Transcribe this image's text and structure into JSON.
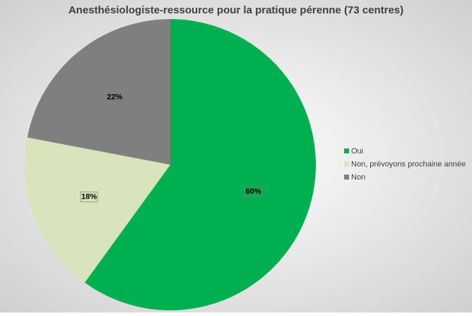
{
  "chart_data": {
    "type": "pie",
    "title": "Anesthésiologiste-ressource pour la pratique pérenne (73 centres)",
    "categories": [
      "Oui",
      "Non, prévoyons prochaine année",
      "Non"
    ],
    "values": [
      60,
      18,
      22
    ],
    "value_labels": [
      "60%",
      "18%",
      "22%"
    ],
    "colors": [
      "#00b050",
      "#d8e4bc",
      "#7f7f7f"
    ],
    "legend": "right"
  }
}
